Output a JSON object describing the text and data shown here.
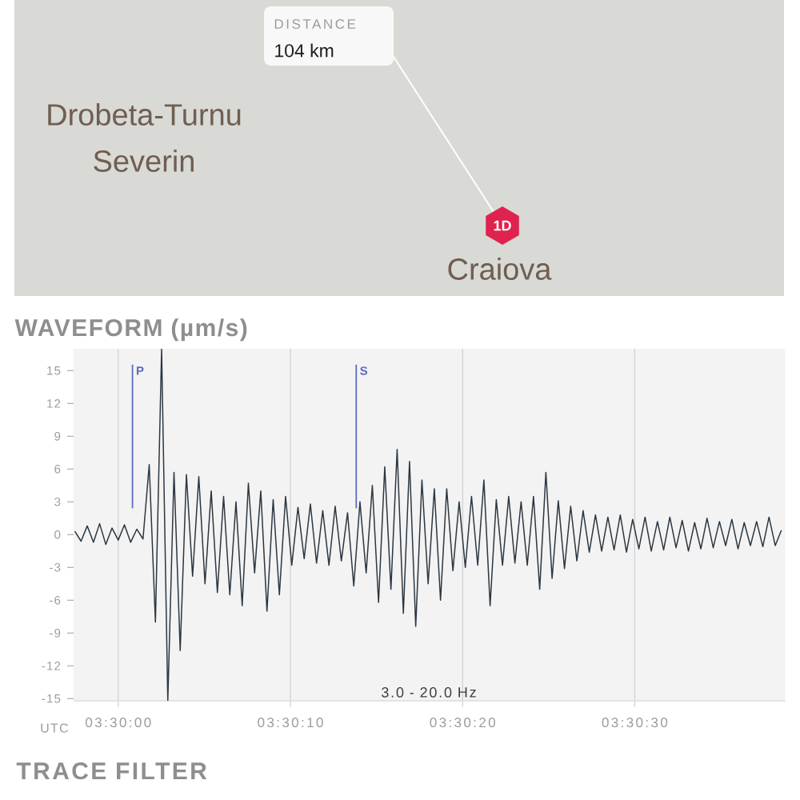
{
  "chart_data": {
    "type": "line",
    "title": "WAVEFORM (µm/s)",
    "xlabel": "UTC",
    "x": [
      3.4993,
      3.4994,
      3.4995,
      3.4996,
      3.4997,
      3.4998,
      3.4999,
      3.5,
      3.5001,
      3.5002,
      3.5003,
      3.5004,
      3.5005,
      3.5006,
      3.5007,
      3.5008,
      3.5009,
      3.501,
      3.5011,
      3.5012,
      3.5013,
      3.5014,
      3.5015,
      3.5016,
      3.5017,
      3.5018,
      3.5019,
      3.502,
      3.5021,
      3.5022,
      3.5023,
      3.5024,
      3.5025,
      3.5026,
      3.5027,
      3.5028,
      3.5029,
      3.503,
      3.5031,
      3.5032,
      3.5033,
      3.5034,
      3.5035,
      3.5036,
      3.5037,
      3.5038,
      3.5039,
      3.504,
      3.5041,
      3.5042,
      3.5043,
      3.5044,
      3.5045,
      3.5046,
      3.5047,
      3.5048,
      3.5049,
      3.505,
      3.5051,
      3.5052,
      3.5053,
      3.5054,
      3.5055,
      3.5056,
      3.5057,
      3.5058,
      3.5059,
      3.506,
      3.5061,
      3.5062,
      3.5063,
      3.5064,
      3.5065,
      3.5066,
      3.5067,
      3.5068,
      3.5069,
      3.507,
      3.5071,
      3.5072,
      3.5073,
      3.5074,
      3.5075,
      3.5076,
      3.5077,
      3.5078,
      3.5079,
      3.508,
      3.5081,
      3.5082,
      3.5083,
      3.5084,
      3.5085,
      3.5086,
      3.5087,
      3.5088,
      3.5089,
      3.509,
      3.5091,
      3.5092,
      3.5093,
      3.5094,
      3.5095,
      3.5096,
      3.5097,
      3.5098,
      3.5099,
      3.51,
      3.5101,
      3.5102,
      3.5103,
      3.5104,
      3.5105,
      3.5106,
      3.5107
    ],
    "series": [
      {
        "color": "#2b3742",
        "values": [
          0.3,
          -0.6,
          0.8,
          -0.7,
          1.0,
          -0.9,
          0.6,
          -0.5,
          0.9,
          -0.7,
          0.5,
          -0.4,
          6.4,
          -8.0,
          17,
          -15.2,
          5.7,
          -10.6,
          5.5,
          -3.8,
          5.3,
          -4.5,
          4.0,
          -5.3,
          3.5,
          -5.5,
          3.0,
          -6.5,
          4.7,
          -3.5,
          4.0,
          -7.0,
          3.2,
          -5.5,
          3.5,
          -2.8,
          2.5,
          -2.2,
          2.8,
          -2.6,
          2.2,
          -2.8,
          2.6,
          -2.4,
          2.0,
          -4.7,
          3.0,
          -3.5,
          4.5,
          -6.2,
          6.2,
          -5.0,
          7.8,
          -7.2,
          6.7,
          -8.4,
          5.0,
          -4.5,
          4.2,
          -6.0,
          4.2,
          -3.3,
          3.0,
          -3.0,
          3.5,
          -2.8,
          5.0,
          -6.5,
          3.2,
          -2.8,
          3.5,
          -2.6,
          3.0,
          -2.8,
          3.5,
          -5.0,
          5.7,
          -4.0,
          3.1,
          -3.1,
          2.6,
          -2.4,
          2.2,
          -1.6,
          1.8,
          -1.5,
          1.6,
          -1.4,
          1.8,
          -1.6,
          1.4,
          -1.3,
          1.6,
          -1.5,
          1.2,
          -1.4,
          1.6,
          -1.2,
          1.3,
          -1.5,
          1.1,
          -1.3,
          1.5,
          -1.2,
          1.2,
          -1.0,
          1.4,
          -1.3,
          1.1,
          -1.0,
          1.2,
          -1.1,
          1.6,
          -1.0,
          0.4
        ]
      }
    ],
    "xlim": [
      3.49928,
      3.51076
    ],
    "ylim": [
      -15.2,
      17
    ],
    "xticks": [
      {
        "value": 3.5,
        "label": "03:30:00"
      },
      {
        "value": 3.502778,
        "label": "03:30:10"
      },
      {
        "value": 3.505556,
        "label": "03:30:20"
      },
      {
        "value": 3.508333,
        "label": "03:30:30"
      }
    ],
    "yticks": [
      -15,
      -12,
      -9,
      -6,
      -3,
      0,
      3,
      6,
      9,
      12,
      15
    ],
    "grid": "x",
    "ref_lines": [
      {
        "axis": "x",
        "value": 3.50023,
        "label": "P",
        "color": "#5c6bc0"
      },
      {
        "axis": "x",
        "value": 3.50384,
        "label": "S",
        "color": "#5c6bc0"
      }
    ],
    "annotations": [
      "DISTANCE",
      "104 km",
      "Drobeta-Turnu Severin",
      "Craiova",
      "1D",
      "3.0 - 20.0 Hz",
      "TRACE FILTER"
    ]
  }
}
